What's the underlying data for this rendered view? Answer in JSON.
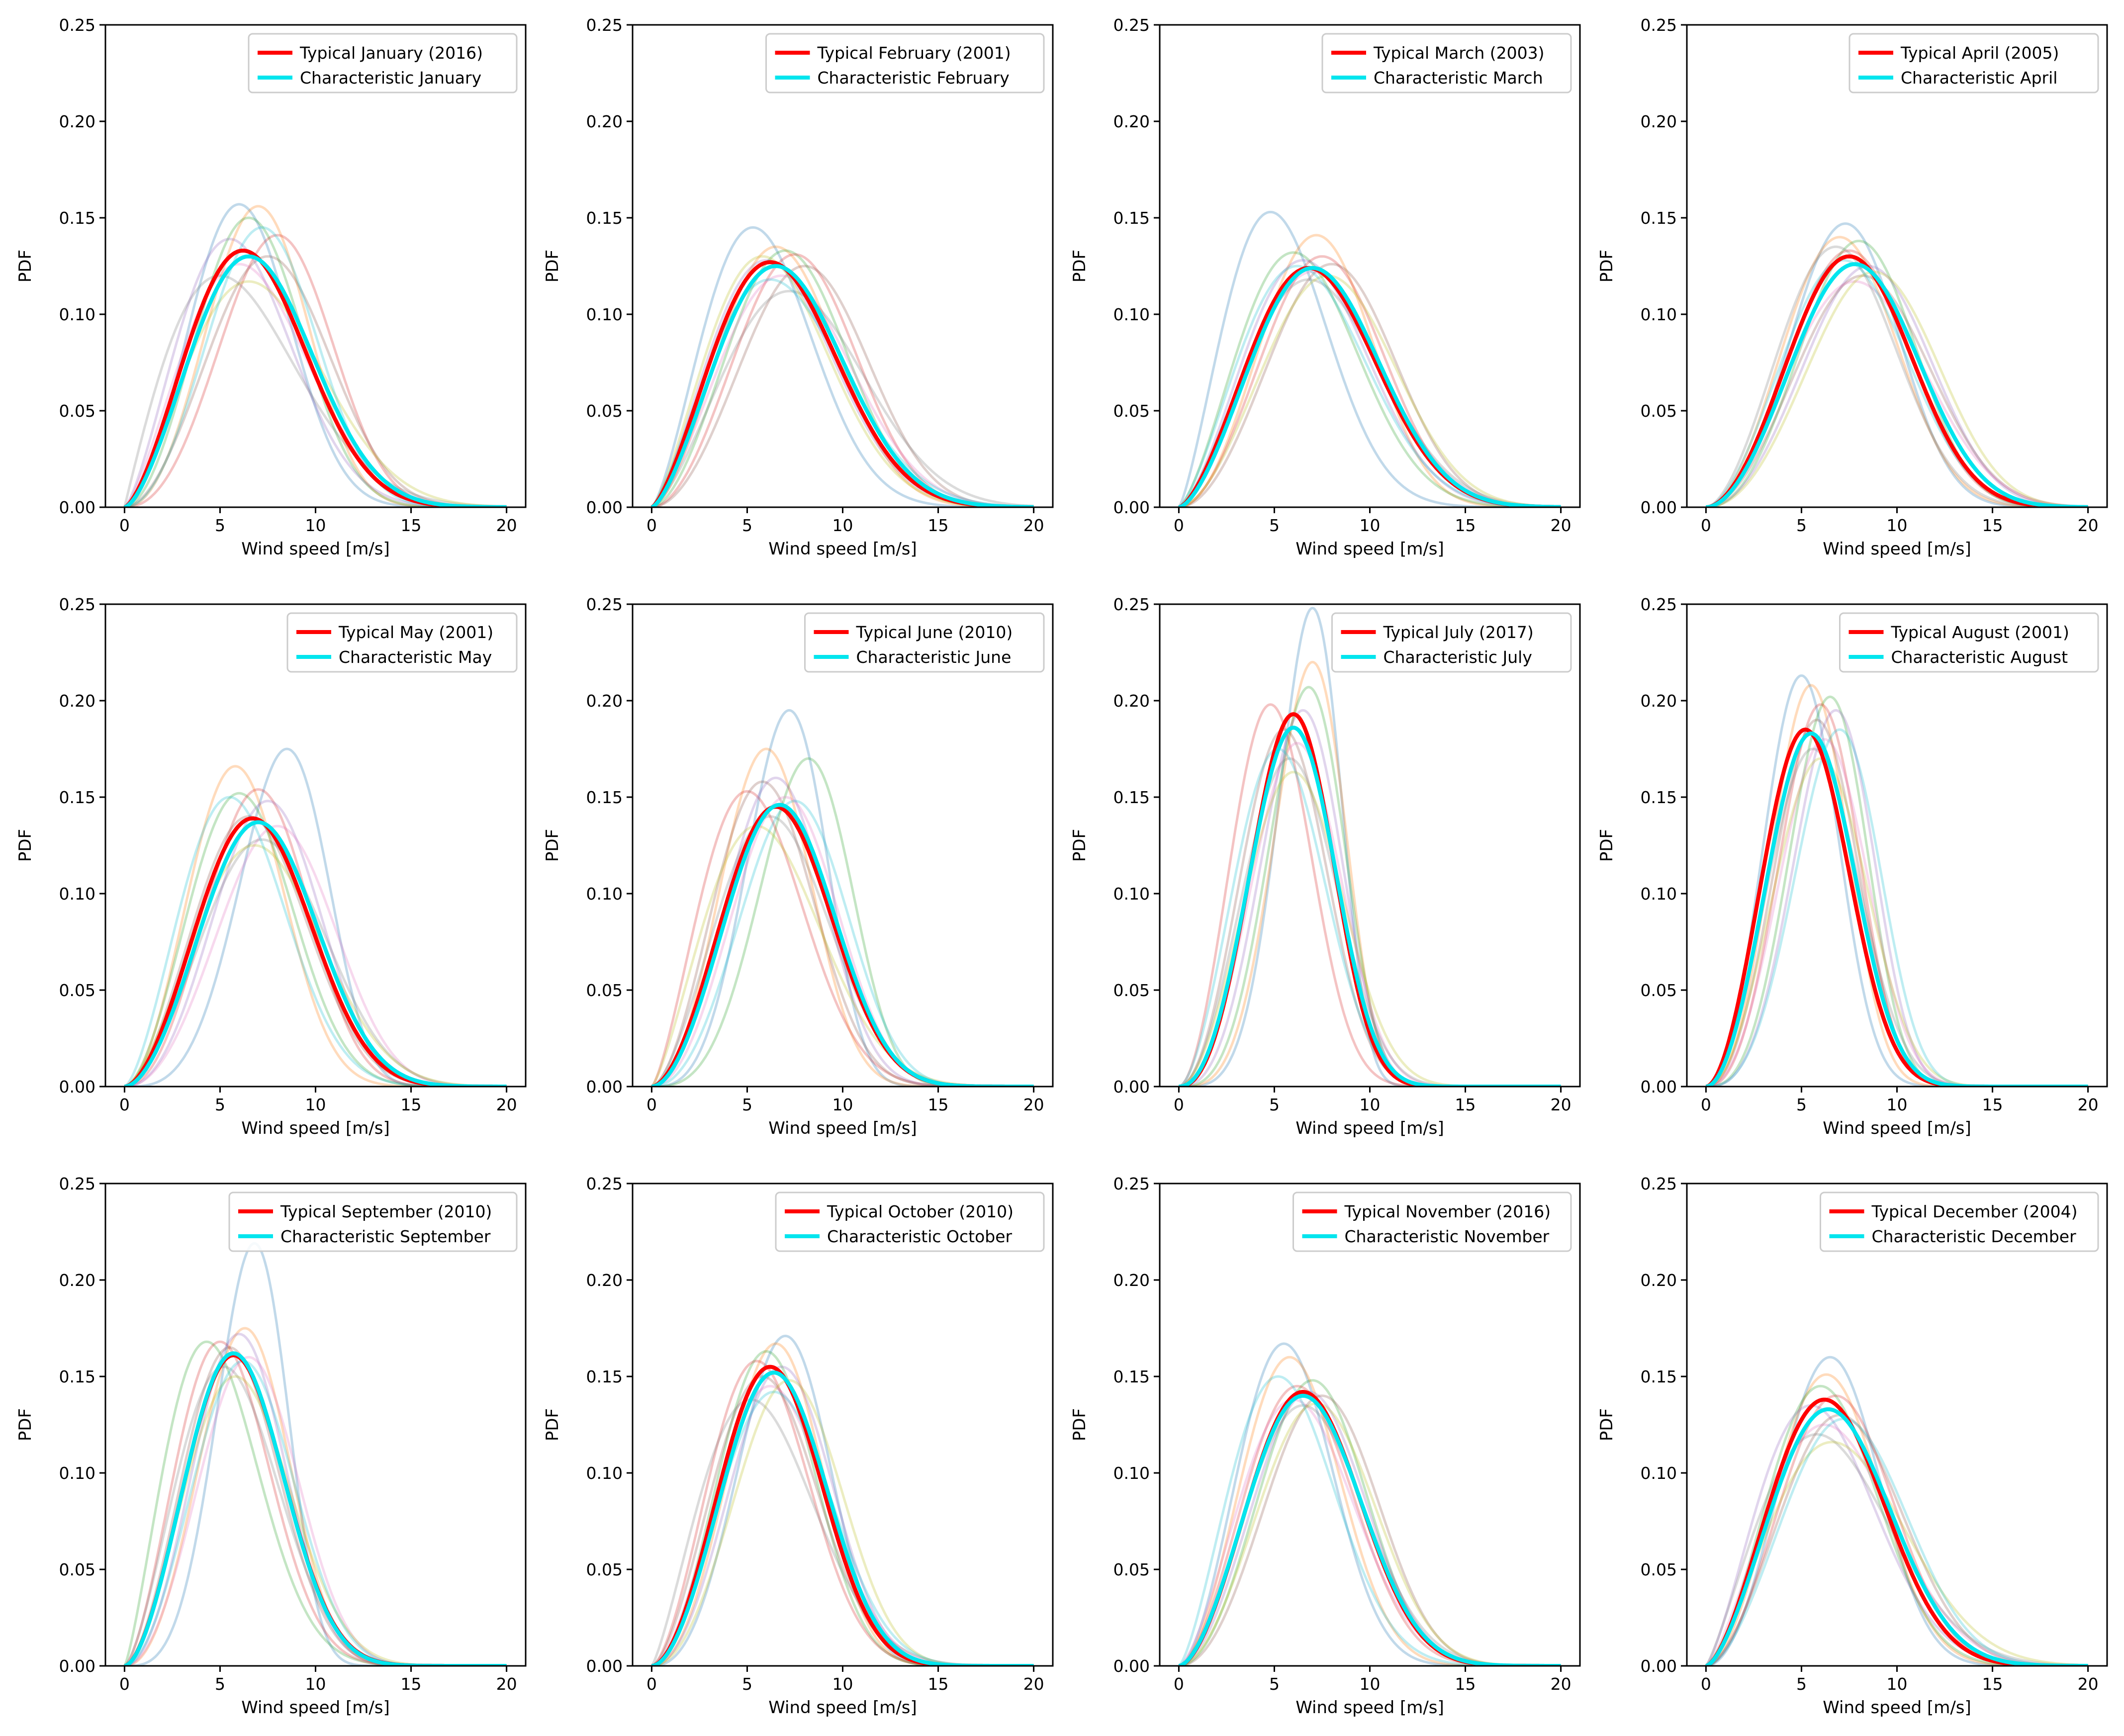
{
  "colors": {
    "typical": "#ff0000",
    "characteristic": "#00e5ee",
    "background_palette": [
      "#1f77b4",
      "#ff7f0e",
      "#2ca02c",
      "#d62728",
      "#9467bd",
      "#8c564b",
      "#e377c2",
      "#7f7f7f",
      "#bcbd22",
      "#17becf"
    ]
  },
  "chart_data": [
    {
      "type": "line",
      "month": "January",
      "xlabel": "Wind speed [m/s]",
      "ylabel": "PDF",
      "xlim": [
        -1,
        21
      ],
      "ylim": [
        0,
        0.25
      ],
      "xticks": [
        "0",
        "5",
        "10",
        "15",
        "20"
      ],
      "yticks": [
        "0.00",
        "0.05",
        "0.10",
        "0.15",
        "0.20",
        "0.25"
      ],
      "typical": {
        "label": "Typical January (2016)",
        "mode": 6.2,
        "peak": 0.133
      },
      "characteristic": {
        "label": "Characteristic January",
        "mode": 6.5,
        "peak": 0.13
      },
      "background_peaks": [
        [
          6.0,
          0.157
        ],
        [
          7.0,
          0.156
        ],
        [
          6.5,
          0.15
        ],
        [
          8.0,
          0.141
        ],
        [
          5.5,
          0.139
        ],
        [
          7.5,
          0.13
        ],
        [
          6.0,
          0.126
        ],
        [
          5.0,
          0.12
        ],
        [
          6.5,
          0.117
        ],
        [
          7.2,
          0.145
        ]
      ],
      "legend_position": "top-right"
    },
    {
      "type": "line",
      "month": "February",
      "xlabel": "Wind speed [m/s]",
      "ylabel": "PDF",
      "xlim": [
        -1,
        21
      ],
      "ylim": [
        0,
        0.25
      ],
      "xticks": [
        "0",
        "5",
        "10",
        "15",
        "20"
      ],
      "yticks": [
        "0.00",
        "0.05",
        "0.10",
        "0.15",
        "0.20",
        "0.25"
      ],
      "typical": {
        "label": "Typical February (2001)",
        "mode": 6.2,
        "peak": 0.127
      },
      "characteristic": {
        "label": "Characteristic February",
        "mode": 6.5,
        "peak": 0.125
      },
      "background_peaks": [
        [
          5.3,
          0.145
        ],
        [
          6.5,
          0.135
        ],
        [
          7.0,
          0.133
        ],
        [
          7.5,
          0.131
        ],
        [
          6.0,
          0.128
        ],
        [
          8.0,
          0.125
        ],
        [
          6.8,
          0.12
        ],
        [
          7.2,
          0.112
        ],
        [
          5.8,
          0.13
        ],
        [
          6.2,
          0.118
        ]
      ],
      "legend_position": "top-right"
    },
    {
      "type": "line",
      "month": "March",
      "xlabel": "Wind speed [m/s]",
      "ylabel": "PDF",
      "xlim": [
        -1,
        21
      ],
      "ylim": [
        0,
        0.25
      ],
      "xticks": [
        "0",
        "5",
        "10",
        "15",
        "20"
      ],
      "yticks": [
        "0.00",
        "0.05",
        "0.10",
        "0.15",
        "0.20",
        "0.25"
      ],
      "typical": {
        "label": "Typical March (2003)",
        "mode": 6.8,
        "peak": 0.124
      },
      "characteristic": {
        "label": "Characteristic March",
        "mode": 7.0,
        "peak": 0.124
      },
      "background_peaks": [
        [
          4.8,
          0.153
        ],
        [
          7.2,
          0.141
        ],
        [
          6.0,
          0.132
        ],
        [
          7.5,
          0.13
        ],
        [
          6.5,
          0.128
        ],
        [
          8.0,
          0.126
        ],
        [
          7.0,
          0.122
        ],
        [
          6.8,
          0.118
        ],
        [
          7.8,
          0.12
        ],
        [
          6.2,
          0.125
        ]
      ],
      "legend_position": "top-right"
    },
    {
      "type": "line",
      "month": "April",
      "xlabel": "Wind speed [m/s]",
      "ylabel": "PDF",
      "xlim": [
        -1,
        21
      ],
      "ylim": [
        0,
        0.25
      ],
      "xticks": [
        "0",
        "5",
        "10",
        "15",
        "20"
      ],
      "yticks": [
        "0.00",
        "0.05",
        "0.10",
        "0.15",
        "0.20",
        "0.25"
      ],
      "typical": {
        "label": "Typical April (2005)",
        "mode": 7.5,
        "peak": 0.13
      },
      "characteristic": {
        "label": "Characteristic April",
        "mode": 7.8,
        "peak": 0.126
      },
      "background_peaks": [
        [
          7.3,
          0.147
        ],
        [
          7.0,
          0.14
        ],
        [
          8.0,
          0.138
        ],
        [
          7.5,
          0.133
        ],
        [
          8.5,
          0.125
        ],
        [
          8.2,
          0.12
        ],
        [
          7.8,
          0.117
        ],
        [
          6.8,
          0.135
        ],
        [
          8.8,
          0.122
        ],
        [
          7.2,
          0.128
        ]
      ],
      "legend_position": "top-right"
    },
    {
      "type": "line",
      "month": "May",
      "xlabel": "Wind speed [m/s]",
      "ylabel": "PDF",
      "xlim": [
        -1,
        21
      ],
      "ylim": [
        0,
        0.25
      ],
      "xticks": [
        "0",
        "5",
        "10",
        "15",
        "20"
      ],
      "yticks": [
        "0.00",
        "0.05",
        "0.10",
        "0.15",
        "0.20",
        "0.25"
      ],
      "typical": {
        "label": "Typical May (2001)",
        "mode": 6.7,
        "peak": 0.139
      },
      "characteristic": {
        "label": "Characteristic May",
        "mode": 7.0,
        "peak": 0.137
      },
      "background_peaks": [
        [
          8.5,
          0.175
        ],
        [
          5.8,
          0.166
        ],
        [
          6.0,
          0.152
        ],
        [
          7.0,
          0.154
        ],
        [
          7.5,
          0.148
        ],
        [
          6.5,
          0.14
        ],
        [
          8.0,
          0.135
        ],
        [
          7.2,
          0.128
        ],
        [
          6.8,
          0.125
        ],
        [
          5.5,
          0.15
        ]
      ],
      "legend_position": "top-right"
    },
    {
      "type": "line",
      "month": "June",
      "xlabel": "Wind speed [m/s]",
      "ylabel": "PDF",
      "xlim": [
        -1,
        21
      ],
      "ylim": [
        0,
        0.25
      ],
      "xticks": [
        "0",
        "5",
        "10",
        "15",
        "20"
      ],
      "yticks": [
        "0.00",
        "0.05",
        "0.10",
        "0.15",
        "0.20",
        "0.25"
      ],
      "typical": {
        "label": "Typical June (2010)",
        "mode": 6.5,
        "peak": 0.145
      },
      "characteristic": {
        "label": "Characteristic June",
        "mode": 6.7,
        "peak": 0.146
      },
      "background_peaks": [
        [
          7.2,
          0.195
        ],
        [
          6.0,
          0.175
        ],
        [
          8.2,
          0.17
        ],
        [
          5.0,
          0.153
        ],
        [
          6.5,
          0.16
        ],
        [
          5.8,
          0.158
        ],
        [
          7.0,
          0.15
        ],
        [
          6.2,
          0.14
        ],
        [
          5.5,
          0.135
        ],
        [
          7.5,
          0.148
        ]
      ],
      "legend_position": "top-right"
    },
    {
      "type": "line",
      "month": "July",
      "xlabel": "Wind speed [m/s]",
      "ylabel": "PDF",
      "xlim": [
        -1,
        21
      ],
      "ylim": [
        0,
        0.25
      ],
      "xticks": [
        "0",
        "5",
        "10",
        "15",
        "20"
      ],
      "yticks": [
        "0.00",
        "0.05",
        "0.10",
        "0.15",
        "0.20",
        "0.25"
      ],
      "typical": {
        "label": "Typical July (2017)",
        "mode": 6.0,
        "peak": 0.193
      },
      "characteristic": {
        "label": "Characteristic July",
        "mode": 6.0,
        "peak": 0.186
      },
      "background_peaks": [
        [
          7.0,
          0.248
        ],
        [
          7.0,
          0.22
        ],
        [
          6.8,
          0.207
        ],
        [
          4.8,
          0.198
        ],
        [
          6.5,
          0.195
        ],
        [
          5.5,
          0.185
        ],
        [
          6.2,
          0.178
        ],
        [
          5.8,
          0.17
        ],
        [
          6.0,
          0.163
        ],
        [
          5.2,
          0.175
        ]
      ],
      "legend_position": "top-right"
    },
    {
      "type": "line",
      "month": "August",
      "xlabel": "Wind speed [m/s]",
      "ylabel": "PDF",
      "xlim": [
        -1,
        21
      ],
      "ylim": [
        0,
        0.25
      ],
      "xticks": [
        "0",
        "5",
        "10",
        "15",
        "20"
      ],
      "yticks": [
        "0.00",
        "0.05",
        "0.10",
        "0.15",
        "0.20",
        "0.25"
      ],
      "typical": {
        "label": "Typical August (2001)",
        "mode": 5.2,
        "peak": 0.185
      },
      "characteristic": {
        "label": "Characteristic August",
        "mode": 5.5,
        "peak": 0.183
      },
      "background_peaks": [
        [
          5.0,
          0.213
        ],
        [
          5.5,
          0.208
        ],
        [
          6.5,
          0.202
        ],
        [
          6.0,
          0.198
        ],
        [
          6.8,
          0.195
        ],
        [
          5.8,
          0.19
        ],
        [
          6.2,
          0.18
        ],
        [
          5.6,
          0.175
        ],
        [
          6.0,
          0.17
        ],
        [
          7.0,
          0.185
        ]
      ],
      "legend_position": "top-right"
    },
    {
      "type": "line",
      "month": "September",
      "xlabel": "Wind speed [m/s]",
      "ylabel": "PDF",
      "xlim": [
        -1,
        21
      ],
      "ylim": [
        0,
        0.25
      ],
      "xticks": [
        "0",
        "5",
        "10",
        "15",
        "20"
      ],
      "yticks": [
        "0.00",
        "0.05",
        "0.10",
        "0.15",
        "0.20",
        "0.25"
      ],
      "typical": {
        "label": "Typical September (2010)",
        "mode": 5.7,
        "peak": 0.161
      },
      "characteristic": {
        "label": "Characteristic September",
        "mode": 5.7,
        "peak": 0.162
      },
      "background_peaks": [
        [
          6.8,
          0.219
        ],
        [
          6.3,
          0.175
        ],
        [
          4.3,
          0.168
        ],
        [
          5.0,
          0.168
        ],
        [
          6.0,
          0.172
        ],
        [
          5.5,
          0.165
        ],
        [
          6.5,
          0.16
        ],
        [
          5.2,
          0.155
        ],
        [
          5.8,
          0.15
        ],
        [
          6.2,
          0.158
        ]
      ],
      "legend_position": "top-right"
    },
    {
      "type": "line",
      "month": "October",
      "xlabel": "Wind speed [m/s]",
      "ylabel": "PDF",
      "xlim": [
        -1,
        21
      ],
      "ylim": [
        0,
        0.25
      ],
      "xticks": [
        "0",
        "5",
        "10",
        "15",
        "20"
      ],
      "yticks": [
        "0.00",
        "0.05",
        "0.10",
        "0.15",
        "0.20",
        "0.25"
      ],
      "typical": {
        "label": "Typical October (2010)",
        "mode": 6.2,
        "peak": 0.155
      },
      "characteristic": {
        "label": "Characteristic October",
        "mode": 6.4,
        "peak": 0.152
      },
      "background_peaks": [
        [
          7.0,
          0.171
        ],
        [
          6.5,
          0.167
        ],
        [
          6.0,
          0.163
        ],
        [
          5.5,
          0.158
        ],
        [
          6.8,
          0.155
        ],
        [
          5.8,
          0.15
        ],
        [
          6.2,
          0.145
        ],
        [
          5.2,
          0.138
        ],
        [
          7.2,
          0.148
        ],
        [
          6.4,
          0.142
        ]
      ],
      "legend_position": "top-right"
    },
    {
      "type": "line",
      "month": "November",
      "xlabel": "Wind speed [m/s]",
      "ylabel": "PDF",
      "xlim": [
        -1,
        21
      ],
      "ylim": [
        0,
        0.25
      ],
      "xticks": [
        "0",
        "5",
        "10",
        "15",
        "20"
      ],
      "yticks": [
        "0.00",
        "0.05",
        "0.10",
        "0.15",
        "0.20",
        "0.25"
      ],
      "typical": {
        "label": "Typical November (2016)",
        "mode": 6.5,
        "peak": 0.142
      },
      "characteristic": {
        "label": "Characteristic November",
        "mode": 6.5,
        "peak": 0.14
      },
      "background_peaks": [
        [
          5.5,
          0.167
        ],
        [
          5.8,
          0.16
        ],
        [
          7.0,
          0.148
        ],
        [
          6.2,
          0.145
        ],
        [
          6.8,
          0.142
        ],
        [
          7.5,
          0.14
        ],
        [
          6.0,
          0.138
        ],
        [
          6.5,
          0.135
        ],
        [
          7.2,
          0.136
        ],
        [
          5.2,
          0.15
        ]
      ],
      "legend_position": "top-right"
    },
    {
      "type": "line",
      "month": "December",
      "xlabel": "Wind speed [m/s]",
      "ylabel": "PDF",
      "xlim": [
        -1,
        21
      ],
      "ylim": [
        0,
        0.25
      ],
      "xticks": [
        "0",
        "5",
        "10",
        "15",
        "20"
      ],
      "yticks": [
        "0.00",
        "0.05",
        "0.10",
        "0.15",
        "0.20",
        "0.25"
      ],
      "typical": {
        "label": "Typical December (2004)",
        "mode": 6.2,
        "peak": 0.138
      },
      "characteristic": {
        "label": "Characteristic December",
        "mode": 6.4,
        "peak": 0.133
      },
      "background_peaks": [
        [
          6.5,
          0.16
        ],
        [
          6.3,
          0.151
        ],
        [
          6.0,
          0.145
        ],
        [
          6.8,
          0.14
        ],
        [
          5.5,
          0.135
        ],
        [
          7.0,
          0.13
        ],
        [
          6.2,
          0.125
        ],
        [
          5.8,
          0.12
        ],
        [
          6.6,
          0.116
        ],
        [
          7.2,
          0.128
        ]
      ],
      "legend_position": "top-right"
    }
  ]
}
